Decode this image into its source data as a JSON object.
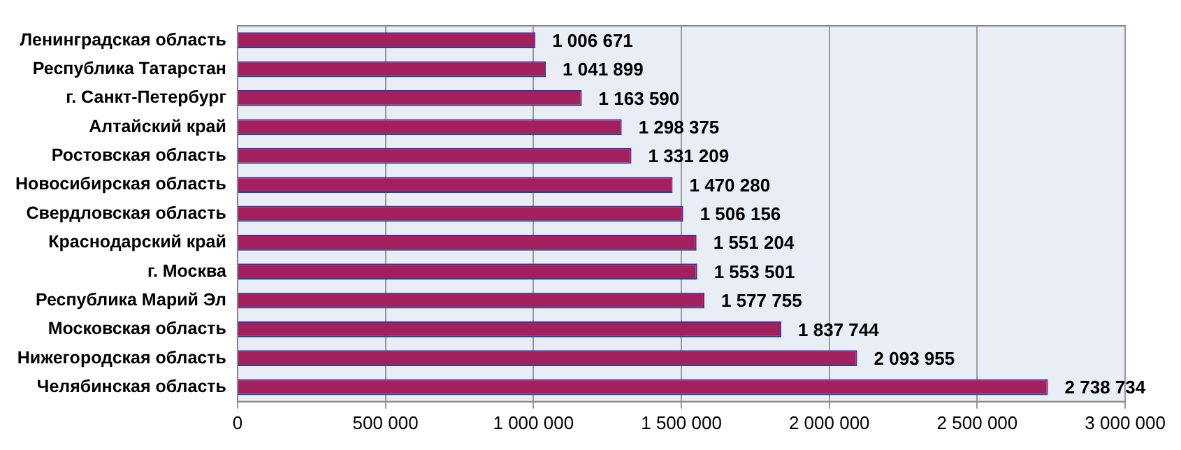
{
  "chart_data": {
    "type": "bar",
    "orientation": "horizontal",
    "categories": [
      "Ленинградская область",
      "Республика Татарстан",
      "г. Санкт-Петербург",
      "Алтайский край",
      "Ростовская область",
      "Новосибирская область",
      "Свердловская область",
      "Краснодарский край",
      "г. Москва",
      "Республика Марий Эл",
      "Московская область",
      "Нижегородская область",
      "Челябинская область"
    ],
    "values": [
      1006671,
      1041899,
      1163590,
      1298375,
      1331209,
      1470280,
      1506156,
      1551204,
      1553501,
      1577755,
      1837744,
      2093955,
      2738734
    ],
    "value_labels": [
      "1 006 671",
      "1 041 899",
      "1 163 590",
      "1 298 375",
      "1 331 209",
      "1 470 280",
      "1 506 156",
      "1 551 204",
      "1 553 501",
      "1 577 755",
      "1 837 744",
      "2 093 955",
      "2 738 734"
    ],
    "color": "#a3205f",
    "xlim": [
      0,
      3000000
    ],
    "xticks": [
      0,
      {
        "value": 500000,
        "label": "500 000"
      },
      {
        "value": 1000000,
        "label": "1 000 000"
      },
      {
        "value": 1500000,
        "label": "1 500 000"
      },
      {
        "value": 2000000,
        "label": "2 000 000"
      },
      {
        "value": 2500000,
        "label": "2 500 000"
      },
      {
        "value": 3000000,
        "label": "3 000 000"
      }
    ],
    "grid": "x",
    "legend": false
  }
}
